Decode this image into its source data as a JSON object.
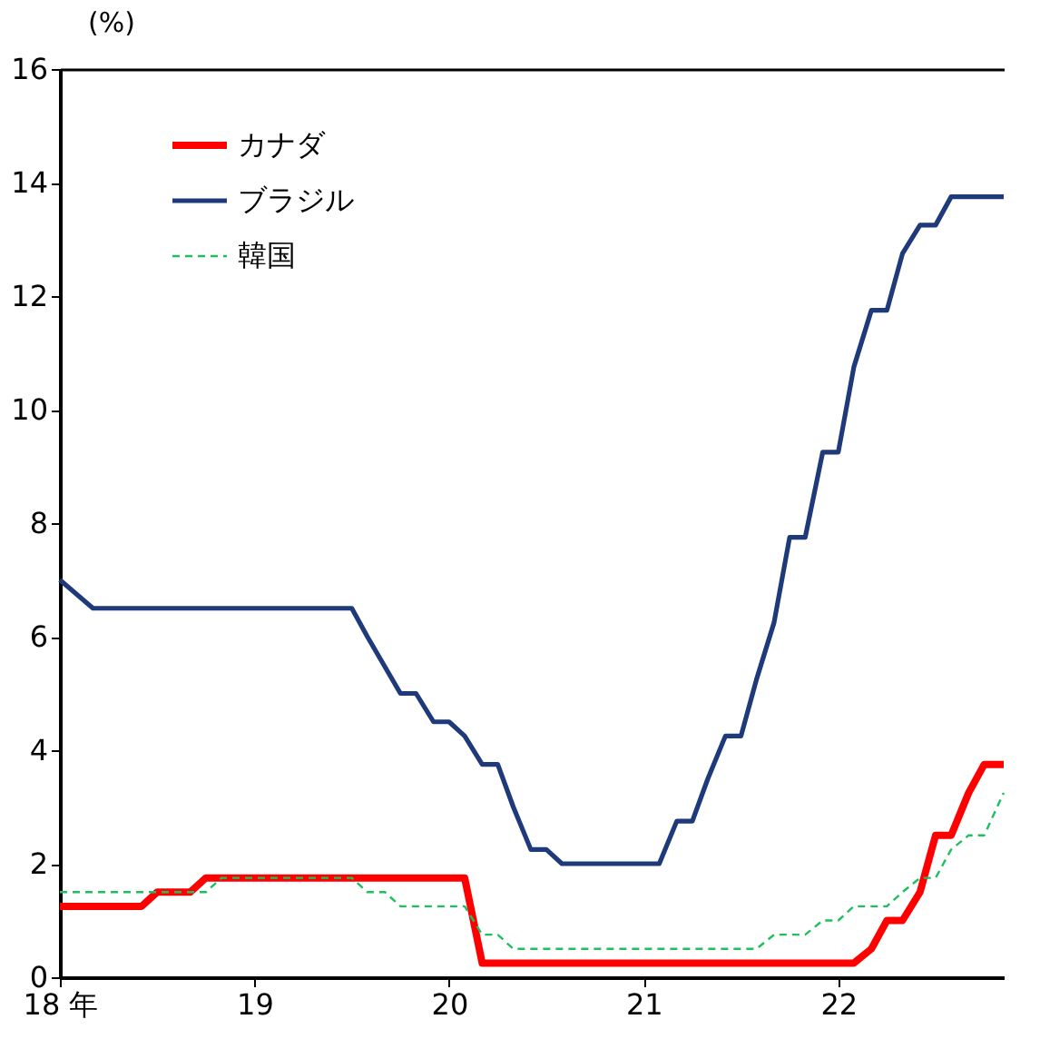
{
  "chart_data": {
    "type": "line",
    "ylabel": "(%)",
    "xlim": [
      18,
      22.85
    ],
    "xticks": [
      {
        "value": 18,
        "label": "18 年"
      },
      19,
      20,
      21,
      22
    ],
    "ylim": [
      0,
      16
    ],
    "yticks": [
      0,
      2,
      4,
      6,
      8,
      10,
      12,
      14,
      16
    ],
    "grid": false,
    "legend": "top left",
    "marker": "none",
    "series": [
      {
        "name": "カナダ",
        "color": "#ff0000",
        "line_style": "solid",
        "x": [
          18.0,
          18.42,
          18.5,
          18.67,
          18.75,
          20.08,
          20.17,
          22.08,
          22.17,
          22.25,
          22.33,
          22.42,
          22.5,
          22.58,
          22.67,
          22.75,
          22.85
        ],
        "values": [
          1.25,
          1.25,
          1.5,
          1.5,
          1.75,
          1.75,
          0.25,
          0.25,
          0.5,
          1.0,
          1.0,
          1.5,
          2.5,
          2.5,
          3.25,
          3.75,
          3.75
        ]
      },
      {
        "name": "ブラジル",
        "color": "#1f3a7a",
        "line_style": "solid",
        "x": [
          18.0,
          18.17,
          19.5,
          19.58,
          19.75,
          19.83,
          19.92,
          20.0,
          20.08,
          20.17,
          20.25,
          20.33,
          20.42,
          20.5,
          20.58,
          21.08,
          21.17,
          21.25,
          21.33,
          21.42,
          21.5,
          21.58,
          21.67,
          21.75,
          21.83,
          21.92,
          22.0,
          22.08,
          22.17,
          22.25,
          22.33,
          22.42,
          22.5,
          22.58,
          22.85
        ],
        "values": [
          7.0,
          6.5,
          6.5,
          6.0,
          5.0,
          5.0,
          4.5,
          4.5,
          4.25,
          3.75,
          3.75,
          3.0,
          2.25,
          2.25,
          2.0,
          2.0,
          2.75,
          2.75,
          3.5,
          4.25,
          4.25,
          5.25,
          6.25,
          7.75,
          7.75,
          9.25,
          9.25,
          10.75,
          11.75,
          11.75,
          12.75,
          13.25,
          13.25,
          13.75,
          13.75
        ]
      },
      {
        "name": "韓国",
        "color": "#1fbf5f",
        "line_style": "dashed",
        "x": [
          18.0,
          18.75,
          18.83,
          19.5,
          19.58,
          19.67,
          19.75,
          20.08,
          20.17,
          20.25,
          20.33,
          21.58,
          21.67,
          21.83,
          21.92,
          22.0,
          22.08,
          22.25,
          22.33,
          22.42,
          22.5,
          22.58,
          22.67,
          22.75,
          22.85
        ],
        "values": [
          1.5,
          1.5,
          1.75,
          1.75,
          1.5,
          1.5,
          1.25,
          1.25,
          0.75,
          0.75,
          0.5,
          0.5,
          0.75,
          0.75,
          1.0,
          1.0,
          1.25,
          1.25,
          1.5,
          1.75,
          1.75,
          2.25,
          2.5,
          2.5,
          3.25
        ]
      }
    ]
  }
}
